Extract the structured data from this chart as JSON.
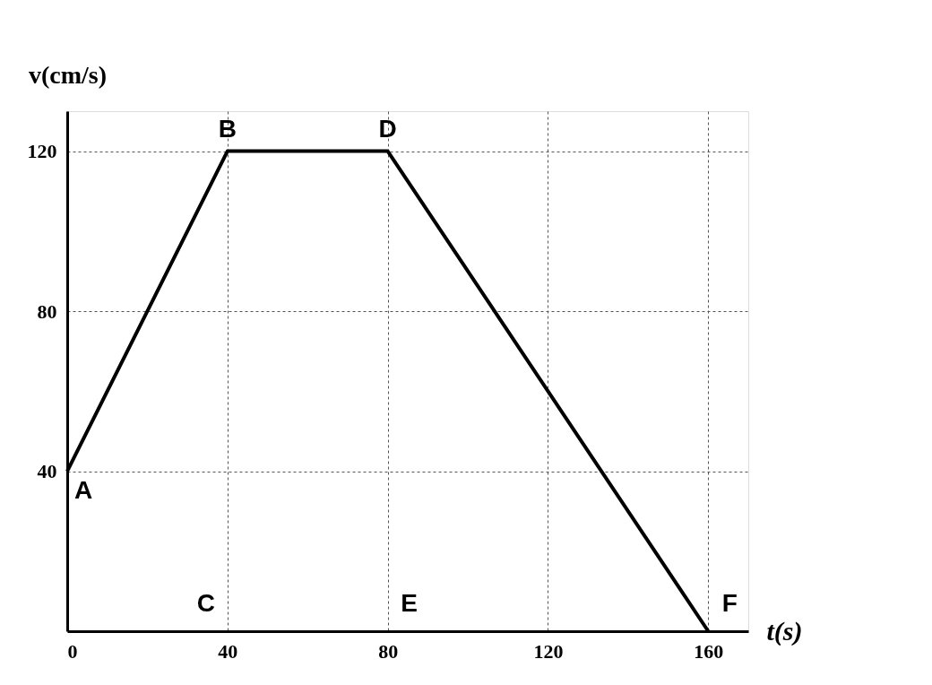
{
  "chart_data": {
    "type": "line",
    "xlabel": "t(s)",
    "ylabel": "v(cm/s)",
    "x": [
      0,
      40,
      80,
      160
    ],
    "series": [
      {
        "color": "#000000",
        "values": [
          40,
          120,
          120,
          0
        ]
      }
    ],
    "xlim": [
      0,
      170
    ],
    "ylim": [
      0,
      130
    ],
    "xticks": [
      0,
      40,
      80,
      120,
      160
    ],
    "yticks": [
      40,
      80,
      120
    ],
    "grid": true,
    "marker": "none",
    "line_style": "solid",
    "annotations": [
      {
        "text": "A",
        "x": 0,
        "y": 40
      },
      {
        "text": "B",
        "x": 40,
        "y": 120
      },
      "C",
      {
        "text": "D",
        "x": 80,
        "y": 120
      },
      "E",
      {
        "text": "F",
        "x": 160,
        "y": 0
      }
    ]
  }
}
